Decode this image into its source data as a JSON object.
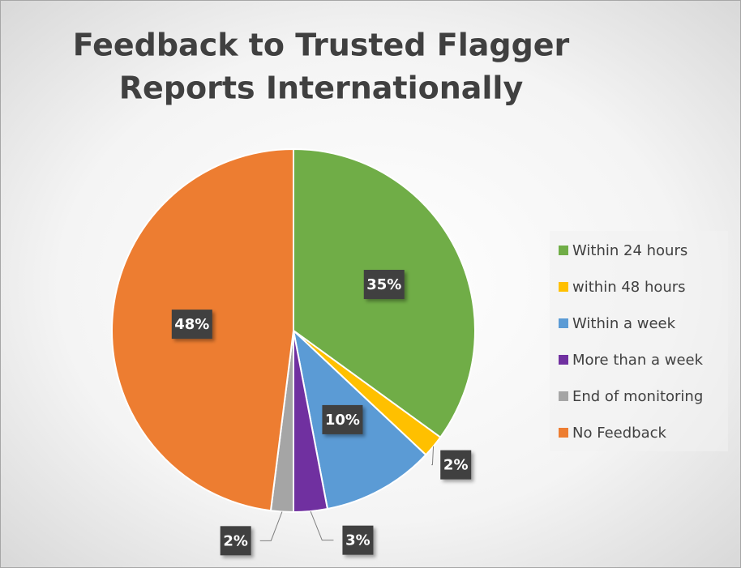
{
  "chart_data": {
    "type": "pie",
    "title": "Feedback to Trusted Flagger Reports Internationally",
    "title_lines": [
      "Feedback to Trusted Flagger",
      "Reports Internationally"
    ],
    "categories": [
      "Within 24 hours",
      "within 48 hours",
      "Within a week",
      "More than a week",
      "End of monitoring",
      "No Feedback"
    ],
    "values": [
      35,
      2,
      10,
      3,
      2,
      48
    ],
    "value_labels": [
      "35%",
      "2%",
      "10%",
      "3%",
      "2%",
      "48%"
    ],
    "colors": [
      "#70ad47",
      "#ffc000",
      "#5b9bd5",
      "#7030a0",
      "#a5a5a5",
      "#ed7d31"
    ],
    "legend": "right"
  }
}
